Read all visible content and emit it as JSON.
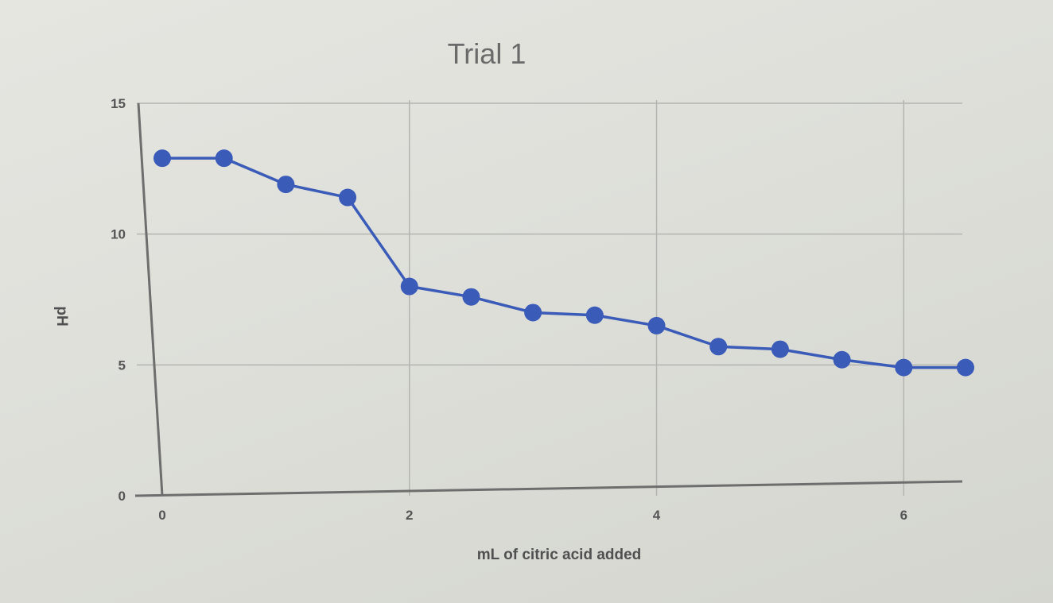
{
  "chart_data": {
    "type": "line",
    "title": "Trial 1",
    "xlabel": "mL of citric acid added",
    "ylabel": "pH",
    "xlim": [
      0,
      6.5
    ],
    "ylim": [
      0,
      15
    ],
    "x_ticks": [
      {
        "value": 0,
        "label": "0"
      },
      {
        "value": 2,
        "label": "2"
      },
      {
        "value": 4,
        "label": "4"
      },
      {
        "value": 6,
        "label": "6"
      }
    ],
    "y_ticks": [
      {
        "value": 0,
        "label": "0"
      },
      {
        "value": 5,
        "label": "5"
      },
      {
        "value": 10,
        "label": "10"
      },
      {
        "value": 15,
        "label": "15"
      }
    ],
    "grid": true,
    "legend": "none",
    "series": [
      {
        "color": "#3a5bb8",
        "points": [
          {
            "x": 0.0,
            "y": 12.9
          },
          {
            "x": 0.5,
            "y": 12.9
          },
          {
            "x": 1.0,
            "y": 11.9
          },
          {
            "x": 1.5,
            "y": 11.4
          },
          {
            "x": 2.0,
            "y": 8.0
          },
          {
            "x": 2.5,
            "y": 7.6
          },
          {
            "x": 3.0,
            "y": 7.0
          },
          {
            "x": 3.5,
            "y": 6.9
          },
          {
            "x": 4.0,
            "y": 6.5
          },
          {
            "x": 4.5,
            "y": 5.7
          },
          {
            "x": 5.0,
            "y": 5.6
          },
          {
            "x": 5.5,
            "y": 5.2
          },
          {
            "x": 6.0,
            "y": 4.9
          },
          {
            "x": 6.5,
            "y": 4.9
          }
        ]
      }
    ]
  }
}
